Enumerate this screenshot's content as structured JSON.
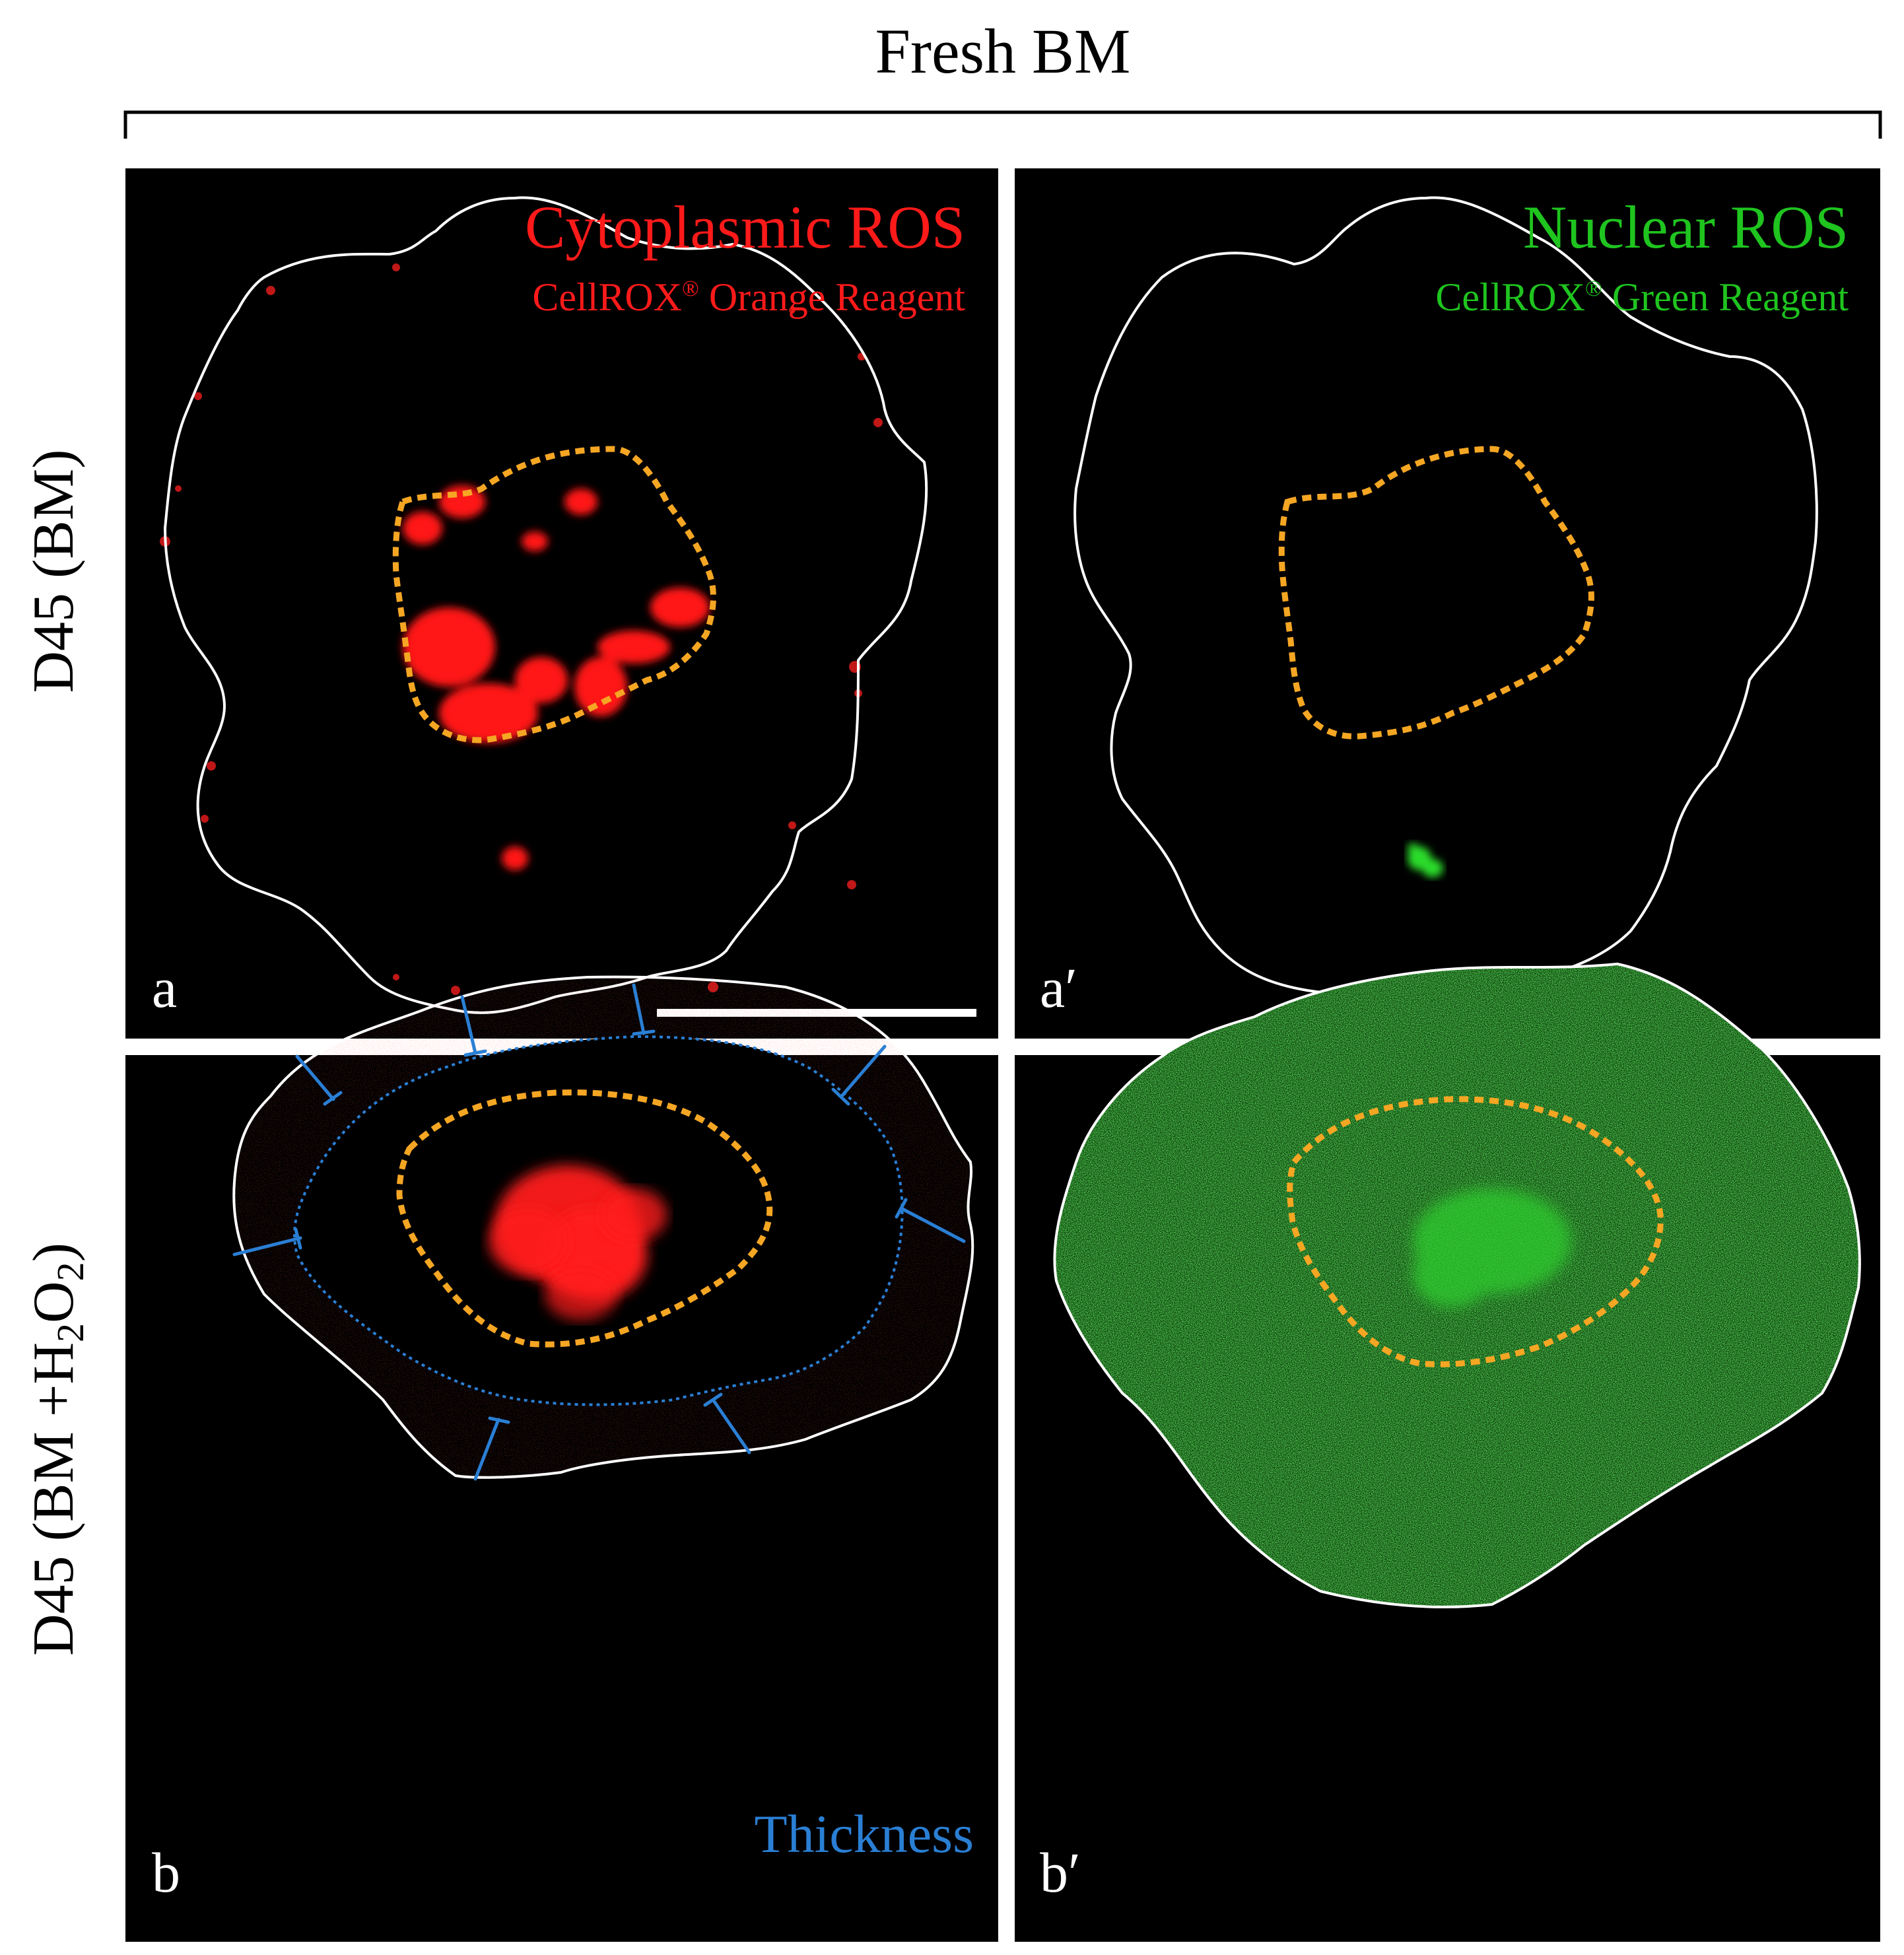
{
  "header": {
    "title": "Fresh BM"
  },
  "rows": [
    {
      "label": "D45 (BM)"
    },
    {
      "label_prefix": "D45 (BM +H",
      "label_sub1": "2",
      "label_mid": "O",
      "label_sub2": "2",
      "label_suffix": ")"
    }
  ],
  "panels": {
    "a": {
      "letter": "a",
      "channel_title": "Cytoplasmic ROS",
      "reagent_prefix": "CellROX",
      "reagent_reg": "®",
      "reagent_suffix": " Orange Reagent",
      "color": "#ff1a1a"
    },
    "a_prime": {
      "letter": "a′",
      "channel_title": "Nuclear ROS",
      "reagent_prefix": "CellROX",
      "reagent_reg": "®",
      "reagent_suffix": " Green Reagent",
      "color": "#1fc41f"
    },
    "b": {
      "letter": "b",
      "annotation": "Thickness",
      "annotation_color": "#2a7fd4"
    },
    "b_prime": {
      "letter": "b′"
    }
  },
  "colors": {
    "panel_bg": "#000000",
    "outline": "#ffffff",
    "nucleus_outline": "#f5a623",
    "thickness_lines": "#2a7fd4"
  }
}
